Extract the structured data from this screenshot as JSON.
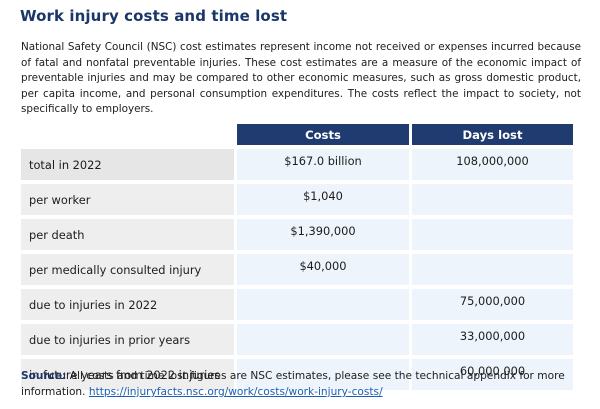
{
  "title": "Work injury costs and time lost",
  "intro": "National Safety Council (NSC) cost estimates represent income not received or expenses incurred because of fatal and nonfatal preventable injuries. These cost estimates are a measure of the economic impact of preventable injuries and may be compared to other economic measures, such as gross domestic product, per capita income, and personal consumption expenditures. The costs reflect the impact to society, not specifically to employers.",
  "table": {
    "headers": [
      "",
      "Costs",
      "Days lost"
    ],
    "rows": [
      {
        "label": "total in 2022",
        "costs": "$167.0 billion",
        "days": "108,000,000"
      },
      {
        "label": "per worker",
        "costs": "$1,040",
        "days": ""
      },
      {
        "label": "per death",
        "costs": "$1,390,000",
        "days": ""
      },
      {
        "label": "per medically consulted injury",
        "costs": "$40,000",
        "days": ""
      },
      {
        "label": "due to injuries in 2022",
        "costs": "",
        "days": "75,000,000"
      },
      {
        "label": "due to injuries in prior years",
        "costs": "",
        "days": "33,000,000"
      },
      {
        "label": "in future years from 2022 injuries",
        "costs": "",
        "days": "60,000,000"
      }
    ]
  },
  "source": {
    "label": "Source:",
    "text": " All costs and time lost figures are NSC estimates, please see the technical appendix for more information. ",
    "link": "https://injuryfacts.nsc.org/work/costs/work-injury-costs/"
  },
  "colors": {
    "header_bg": "#1f3b6f",
    "title": "#1b3668",
    "link": "#1a5fb4"
  }
}
